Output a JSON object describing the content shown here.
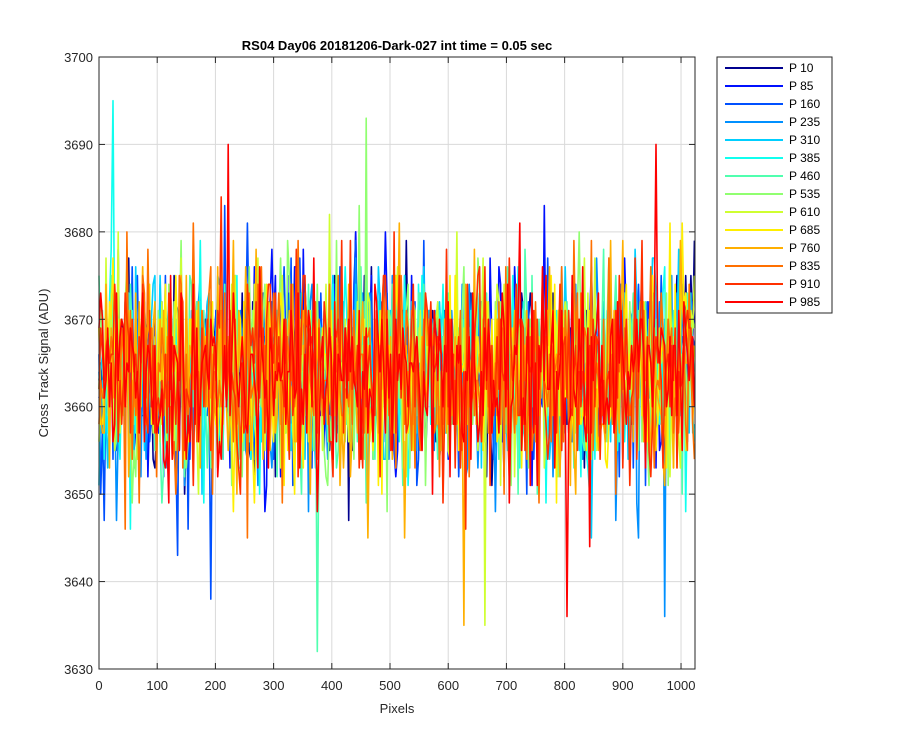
{
  "chart_data": {
    "type": "line",
    "title": "RS04 Day06 20181206-Dark-027 int time = 0.05 sec",
    "xlabel": "Pixels",
    "ylabel": "Cross Track Signal (ADU)",
    "xlim": [
      0,
      1024
    ],
    "ylim": [
      3630,
      3700
    ],
    "xticks": [
      0,
      100,
      200,
      300,
      400,
      500,
      600,
      700,
      800,
      900,
      1000
    ],
    "yticks": [
      3630,
      3640,
      3650,
      3660,
      3670,
      3680,
      3690,
      3700
    ],
    "grid": true,
    "legend_position": "outside-right",
    "series_mean": 3664,
    "series_spread": 6,
    "series_step": 3,
    "series": [
      {
        "name": "P 10",
        "color": "#00008f"
      },
      {
        "name": "P 85",
        "color": "#0010ff"
      },
      {
        "name": "P 160",
        "color": "#0050ff"
      },
      {
        "name": "P 235",
        "color": "#0090ff"
      },
      {
        "name": "P 310",
        "color": "#00cfff"
      },
      {
        "name": "P 385",
        "color": "#10ffef"
      },
      {
        "name": "P 460",
        "color": "#50ffaf"
      },
      {
        "name": "P 535",
        "color": "#90ff70"
      },
      {
        "name": "P 610",
        "color": "#cfff30"
      },
      {
        "name": "P 685",
        "color": "#ffef00"
      },
      {
        "name": "P 760",
        "color": "#ffaf00"
      },
      {
        "name": "P 835",
        "color": "#ff7000"
      },
      {
        "name": "P 910",
        "color": "#ff3000"
      },
      {
        "name": "P 985",
        "color": "#ff0000"
      }
    ],
    "annotated_extremes": [
      {
        "series": "P 385",
        "x": 25,
        "y": 3695
      },
      {
        "series": "P 460",
        "x": 374,
        "y": 3632
      },
      {
        "series": "P 535",
        "x": 460,
        "y": 3693
      },
      {
        "series": "P 985",
        "x": 222,
        "y": 3690
      },
      {
        "series": "P 985",
        "x": 958,
        "y": 3690
      },
      {
        "series": "P 985",
        "x": 803,
        "y": 3636
      },
      {
        "series": "P 760",
        "x": 628,
        "y": 3635
      },
      {
        "series": "P 610",
        "x": 662,
        "y": 3635
      },
      {
        "series": "P 160",
        "x": 193,
        "y": 3638
      },
      {
        "series": "P 235",
        "x": 972,
        "y": 3636
      }
    ]
  }
}
